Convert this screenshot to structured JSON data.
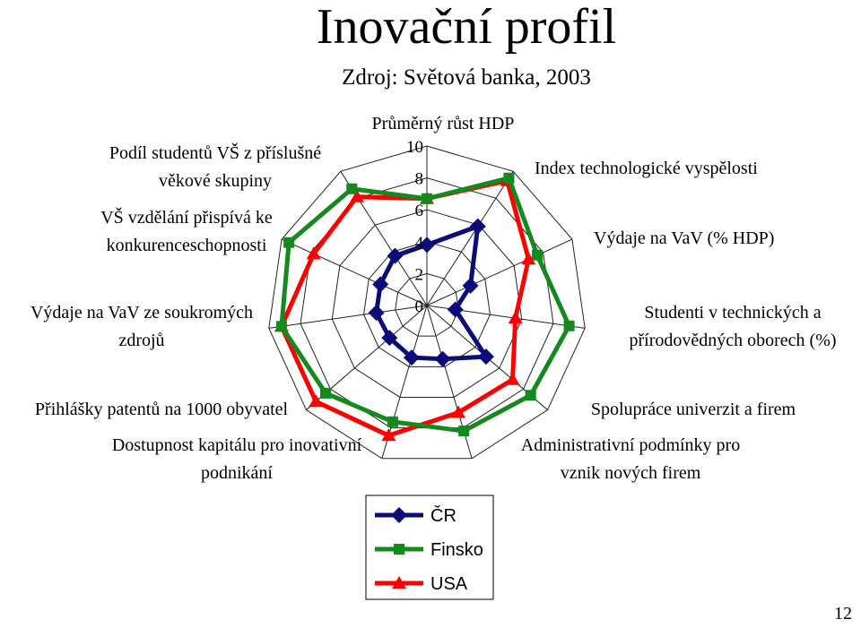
{
  "page": {
    "title": "Inovační profil",
    "subtitle": "Zdroj: Světová banka, 2003",
    "page_number": "12"
  },
  "chart_data": {
    "type": "radar",
    "title": "Inovační profil",
    "subtitle": "Zdroj: Světová banka, 2003",
    "categories": [
      "Průměrný růst HDP",
      "Index technologické vyspělosti",
      "Výdaje na VaV (% HDP)",
      "Studenti v technických a přírodovědných oborech (%)",
      "Spolupráce univerzit a firem",
      "Administrativní podmínky pro vznik nových firem",
      "Dostupnost kapitálu pro inovativní podnikání",
      "Přihlášky patentů na 1000 obyvatel",
      "Výdaje na VaV ze soukromých zdrojů",
      "VŠ vzdělání přispívá ke konkurenceschopnosti",
      "Podíl studentů VŠ z příslušné věkové skupiny"
    ],
    "category_label_lines": [
      [
        "Průměrný růst HDP"
      ],
      [
        "Index technologické vyspělosti"
      ],
      [
        "Výdaje na VaV (% HDP)"
      ],
      [
        "Studenti v technických a",
        "přírodovědných oborech (%)"
      ],
      [
        "Spolupráce univerzit a firem"
      ],
      [
        "Administrativní podmínky pro",
        "vznik nových firem"
      ],
      [
        "Dostupnost kapitálu pro inovativní",
        "podnikání"
      ],
      [
        "Přihlášky patentů na 1000 obyvatel"
      ],
      [
        "Výdaje na VaV ze soukromých",
        "zdrojů"
      ],
      [
        "VŠ vzdělání přispívá ke",
        "konkurenceschopnosti"
      ],
      [
        "Podíl studentů VŠ z příslušné",
        "věkové skupiny"
      ]
    ],
    "r_range": [
      0,
      10
    ],
    "r_ticks": [
      0,
      2,
      4,
      6,
      8,
      10
    ],
    "series": [
      {
        "name": "ČR",
        "color": "#0b0b7a",
        "marker": "diamond",
        "values": [
          3.8,
          5.9,
          3.0,
          1.8,
          4.9,
          3.5,
          3.4,
          3.1,
          3.2,
          3.2,
          3.7
        ]
      },
      {
        "name": "Finsko",
        "color": "#13891e",
        "marker": "square",
        "values": [
          6.7,
          9.5,
          7.6,
          9.0,
          8.6,
          8.2,
          7.6,
          8.4,
          9.2,
          9.5,
          8.7
        ]
      },
      {
        "name": "USA",
        "color": "#ff0000",
        "marker": "triangle",
        "values": [
          6.7,
          9.3,
          7.0,
          5.6,
          7.1,
          7.0,
          8.5,
          9.2,
          9.2,
          7.8,
          8.1
        ]
      }
    ],
    "legend_position": "bottom",
    "grid": true
  }
}
